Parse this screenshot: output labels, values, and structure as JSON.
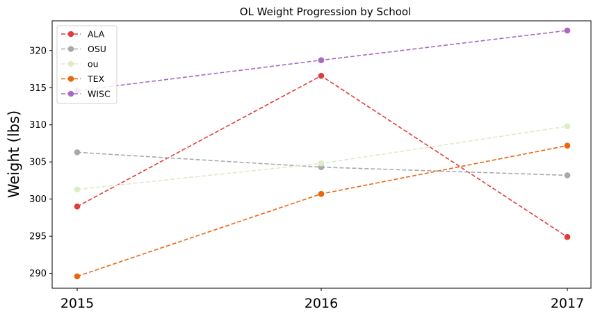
{
  "chart_data": {
    "type": "line",
    "title": "OL Weight Progression by School",
    "xlabel": "",
    "ylabel": "Weight (lbs)",
    "x": [
      "2015",
      "2016",
      "2017"
    ],
    "ylim": [
      288,
      324
    ],
    "yticks": [
      290,
      295,
      300,
      305,
      310,
      315,
      320
    ],
    "grid": false,
    "legend_position": "upper-left",
    "line_style": "dashed",
    "marker": "circle",
    "series": [
      {
        "name": "ALA",
        "color": "#e03c3c",
        "values": [
          299.0,
          316.6,
          294.9
        ]
      },
      {
        "name": "OSU",
        "color": "#a9a9ad",
        "values": [
          306.3,
          304.3,
          303.2
        ]
      },
      {
        "name": "ou",
        "color": "#dcebc8",
        "values": [
          301.3,
          304.8,
          309.8
        ]
      },
      {
        "name": "TEX",
        "color": "#e8660e",
        "values": [
          289.6,
          300.7,
          307.2
        ]
      },
      {
        "name": "WISC",
        "color": "#a86ac0",
        "values": [
          314.6,
          318.7,
          322.7
        ]
      }
    ]
  }
}
